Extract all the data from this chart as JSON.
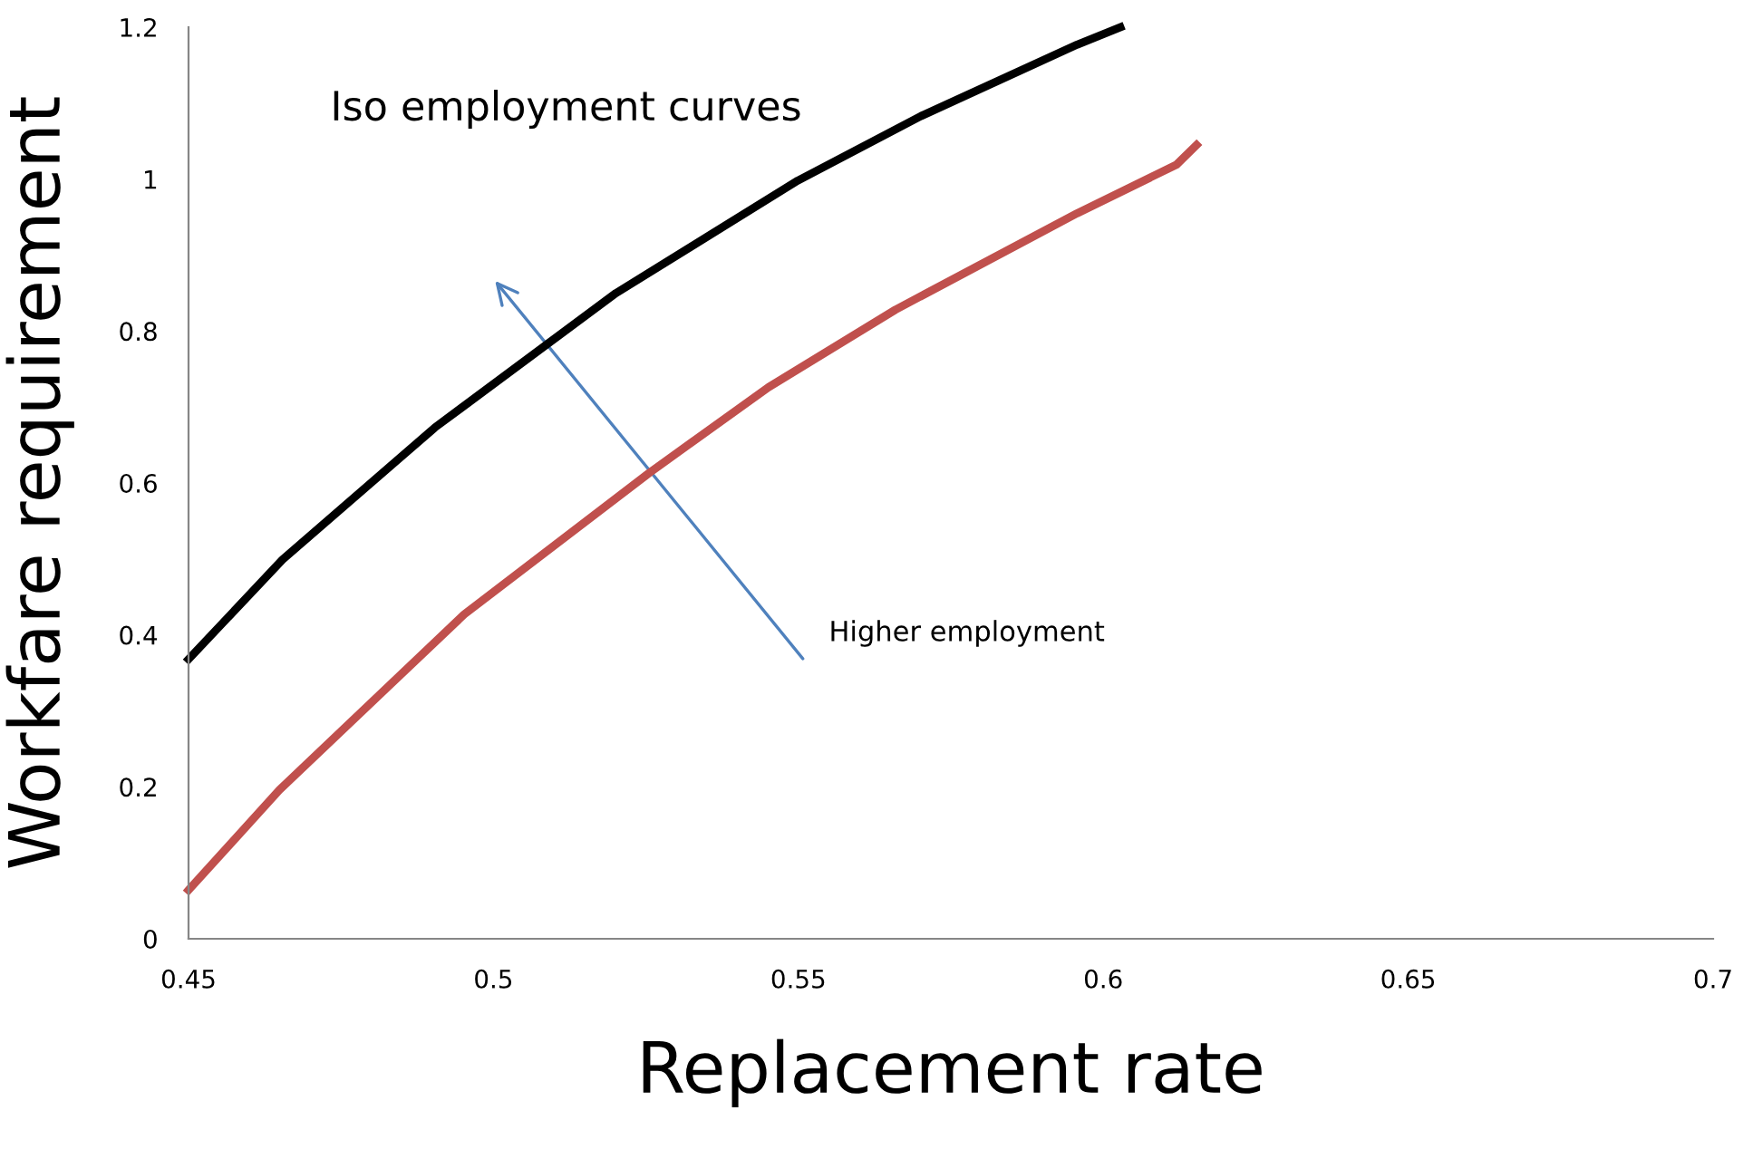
{
  "chart_data": {
    "type": "line",
    "xlabel": "Replacement rate",
    "ylabel": "Workfare requirement",
    "annotations": [
      "Iso employment curves",
      "Higher employment"
    ],
    "series": [
      {
        "color": "#000000",
        "x": [
          0.45,
          0.4654,
          0.4904,
          0.5201,
          0.5499,
          0.5701,
          0.5957,
          0.6028
        ],
        "values": [
          0.368,
          0.499,
          0.673,
          0.85,
          0.998,
          1.083,
          1.177,
          1.2
        ]
      },
      {
        "color": "#c0504d",
        "x": [
          0.45,
          0.4649,
          0.4952,
          0.5255,
          0.5451,
          0.5659,
          0.5957,
          0.612,
          0.6153
        ],
        "values": [
          0.064,
          0.196,
          0.427,
          0.613,
          0.726,
          0.828,
          0.955,
          1.019,
          1.045
        ]
      }
    ],
    "xlim": [
      0.45,
      0.7
    ],
    "xticks": [
      0.45,
      0.5,
      0.55,
      0.6,
      0.65,
      0.7
    ],
    "ylim": [
      0,
      1.2
    ],
    "yticks": [
      0,
      0.2,
      0.4,
      0.6,
      0.8,
      1,
      1.2
    ],
    "grid": false,
    "legend": false,
    "marker": "none",
    "line_style": "solid"
  }
}
